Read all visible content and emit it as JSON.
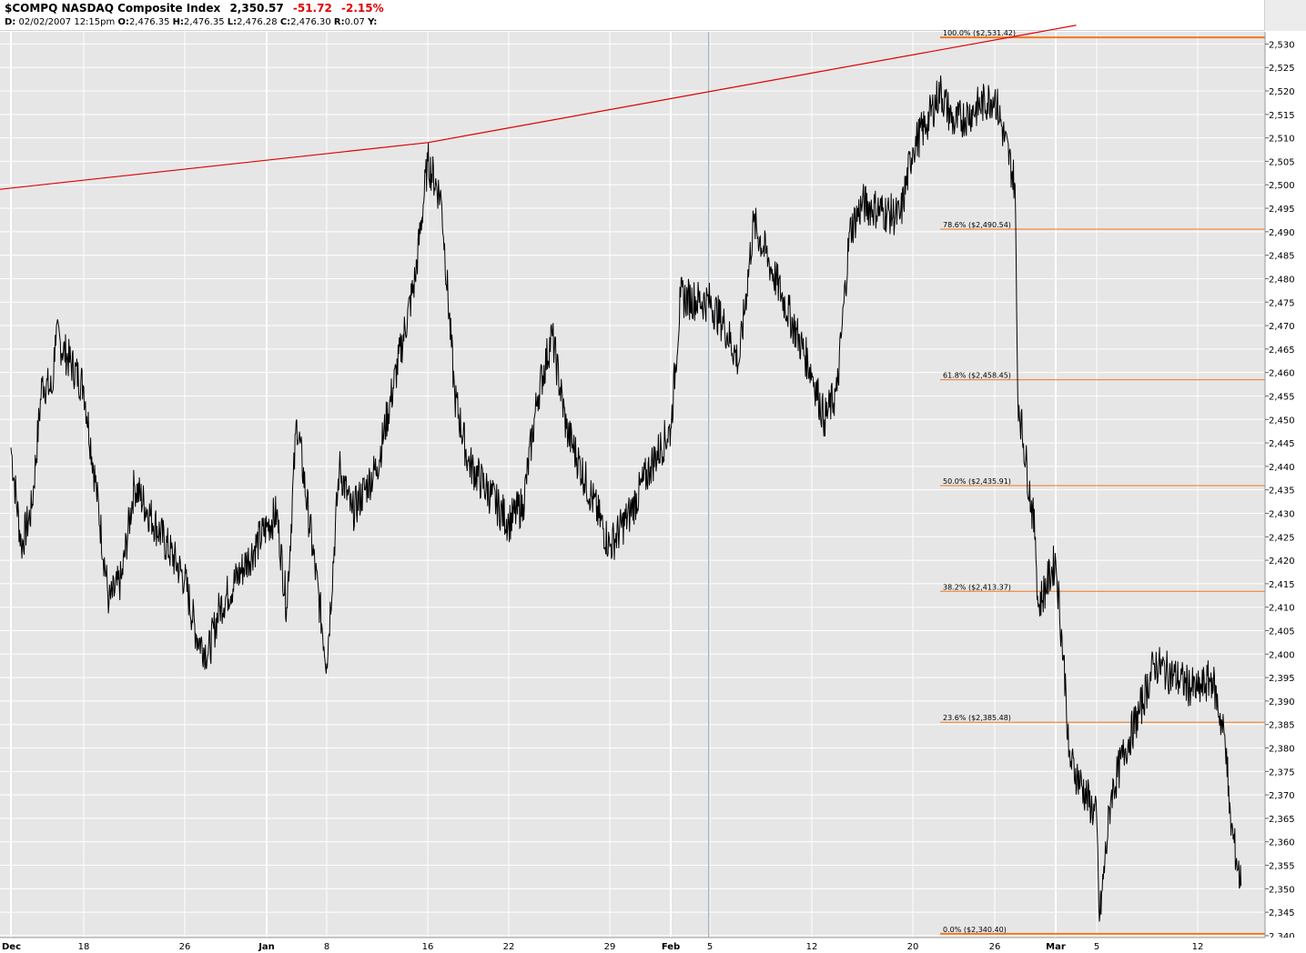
{
  "header": {
    "symbol": "$COMPQ",
    "name": "NASDAQ Composite Index",
    "last": "2,350.57",
    "change": "-51.72",
    "change_pct": "-2.15%",
    "d_label": "D:",
    "date": "02/02/2007",
    "time": "12:15pm",
    "o_label": "O:",
    "open": "2,476.35",
    "h_label": "H:",
    "high": "2,476.35",
    "l_label": "L:",
    "low": "2,476.28",
    "c_label": "C:",
    "close": "2,476.30",
    "r_label": "R:",
    "range": "0.07",
    "y_label": "Y:"
  },
  "colors": {
    "background": "#e6e6e6",
    "grid": "#ffffff",
    "price_line": "#000000",
    "trendline": "#e00000",
    "fib_line": "#f07820",
    "cursor_line": "#8aa0b0",
    "change": "#e00000"
  },
  "chart_data": {
    "type": "line",
    "title": "$COMPQ NASDAQ Composite Index",
    "xlabel": "",
    "ylabel": "",
    "ylim": [
      2340,
      2530
    ],
    "y_ticks": [
      "2,340",
      "2,345",
      "2,350",
      "2,355",
      "2,360",
      "2,365",
      "2,370",
      "2,375",
      "2,380",
      "2,385",
      "2,390",
      "2,395",
      "2,400",
      "2,405",
      "2,410",
      "2,415",
      "2,420",
      "2,425",
      "2,430",
      "2,435",
      "2,440",
      "2,445",
      "2,450",
      "2,455",
      "2,460",
      "2,465",
      "2,470",
      "2,475",
      "2,480",
      "2,485",
      "2,490",
      "2,495",
      "2,500",
      "2,505",
      "2,510",
      "2,515",
      "2,520",
      "2,525",
      "2,530"
    ],
    "x_ticks": [
      {
        "label": "Dec",
        "bold": true,
        "date": "2006-12-11"
      },
      {
        "label": "18",
        "bold": false,
        "date": "2006-12-18"
      },
      {
        "label": "26",
        "bold": false,
        "date": "2006-12-26"
      },
      {
        "label": "Jan",
        "bold": true,
        "date": "2007-01-02"
      },
      {
        "label": "8",
        "bold": false,
        "date": "2007-01-08"
      },
      {
        "label": "16",
        "bold": false,
        "date": "2007-01-16"
      },
      {
        "label": "22",
        "bold": false,
        "date": "2007-01-22"
      },
      {
        "label": "29",
        "bold": false,
        "date": "2007-01-29"
      },
      {
        "label": "Feb",
        "bold": true,
        "date": "2007-02-01"
      },
      {
        "label": "5",
        "bold": false,
        "date": "2007-02-05"
      },
      {
        "label": "12",
        "bold": false,
        "date": "2007-02-12"
      },
      {
        "label": "20",
        "bold": false,
        "date": "2007-02-20"
      },
      {
        "label": "26",
        "bold": false,
        "date": "2007-02-26"
      },
      {
        "label": "Mar",
        "bold": true,
        "date": "2007-03-01"
      },
      {
        "label": "5",
        "bold": false,
        "date": "2007-03-05"
      },
      {
        "label": "12",
        "bold": false,
        "date": "2007-03-12"
      }
    ],
    "series": [
      {
        "values": [
          [
            "2006-12-11",
            2444
          ],
          [
            "2006-12-12",
            2423
          ],
          [
            "2006-12-13",
            2431
          ],
          [
            "2006-12-14",
            2458
          ],
          [
            "2006-12-15",
            2456
          ],
          [
            "2006-12-15",
            2468
          ],
          [
            "2006-12-18",
            2457
          ],
          [
            "2006-12-19",
            2435
          ],
          [
            "2006-12-20",
            2411
          ],
          [
            "2006-12-21",
            2416
          ],
          [
            "2006-12-22",
            2436
          ],
          [
            "2006-12-26",
            2416
          ],
          [
            "2006-12-27",
            2404
          ],
          [
            "2006-12-28",
            2400
          ],
          [
            "2006-12-29",
            2410
          ],
          [
            "2007-01-02",
            2427
          ],
          [
            "2007-01-03",
            2430
          ],
          [
            "2007-01-04",
            2410
          ],
          [
            "2007-01-05",
            2450
          ],
          [
            "2007-01-08",
            2398
          ],
          [
            "2007-01-09",
            2440
          ],
          [
            "2007-01-10",
            2430
          ],
          [
            "2007-01-11",
            2435
          ],
          [
            "2007-01-12",
            2440
          ],
          [
            "2007-01-15",
            2480
          ],
          [
            "2007-01-16",
            2505
          ],
          [
            "2007-01-17",
            2497
          ],
          [
            "2007-01-18",
            2455
          ],
          [
            "2007-01-19",
            2441
          ],
          [
            "2007-01-22",
            2428
          ],
          [
            "2007-01-23",
            2432
          ],
          [
            "2007-01-24",
            2455
          ],
          [
            "2007-01-25",
            2468
          ],
          [
            "2007-01-26",
            2448
          ],
          [
            "2007-01-29",
            2423
          ],
          [
            "2007-01-30",
            2430
          ],
          [
            "2007-01-31",
            2440
          ],
          [
            "2007-02-01",
            2448
          ],
          [
            "2007-02-02",
            2476
          ],
          [
            "2007-02-05",
            2475
          ],
          [
            "2007-02-06",
            2470
          ],
          [
            "2007-02-07",
            2462
          ],
          [
            "2007-02-08",
            2492
          ],
          [
            "2007-02-09",
            2484
          ],
          [
            "2007-02-12",
            2460
          ],
          [
            "2007-02-13",
            2450
          ],
          [
            "2007-02-14",
            2456
          ],
          [
            "2007-02-15",
            2490
          ],
          [
            "2007-02-16",
            2496
          ],
          [
            "2007-02-19",
            2493
          ],
          [
            "2007-02-20",
            2508
          ],
          [
            "2007-02-21",
            2513
          ],
          [
            "2007-02-22",
            2520
          ],
          [
            "2007-02-23",
            2513
          ],
          [
            "2007-02-26",
            2519
          ],
          [
            "2007-02-27",
            2500
          ],
          [
            "2007-02-27",
            2455
          ],
          [
            "2007-02-28",
            2425
          ],
          [
            "2007-02-28",
            2410
          ],
          [
            "2007-03-01",
            2420
          ],
          [
            "2007-03-02",
            2392
          ],
          [
            "2007-03-02",
            2378
          ],
          [
            "2007-03-05",
            2365
          ],
          [
            "2007-03-05",
            2343
          ],
          [
            "2007-03-06",
            2370
          ],
          [
            "2007-03-07",
            2380
          ],
          [
            "2007-03-08",
            2388
          ],
          [
            "2007-03-09",
            2398
          ],
          [
            "2007-03-12",
            2392
          ],
          [
            "2007-03-13",
            2395
          ],
          [
            "2007-03-14",
            2380
          ],
          [
            "2007-03-14",
            2366
          ],
          [
            "2007-03-15",
            2350.57
          ]
        ]
      }
    ],
    "trendline": [
      [
        "2006-12-07",
        2495
      ],
      [
        "2007-01-16",
        2509
      ],
      [
        "2007-03-03",
        2534
      ]
    ],
    "fibonacci": {
      "start_date": "2007-02-22",
      "levels": [
        {
          "label": "100.0%",
          "value": 2531.42,
          "text": "($2,531.42)"
        },
        {
          "label": "78.6%",
          "value": 2490.54,
          "text": "($2,490.54)"
        },
        {
          "label": "61.8%",
          "value": 2458.45,
          "text": "($2,458.45)"
        },
        {
          "label": "50.0%",
          "value": 2435.91,
          "text": "($2,435.91)"
        },
        {
          "label": "38.2%",
          "value": 2413.37,
          "text": "($2,413.37)"
        },
        {
          "label": "23.6%",
          "value": 2385.48,
          "text": "($2,385.48)"
        },
        {
          "label": "0.0%",
          "value": 2340.4,
          "text": "($2,340.40)"
        }
      ]
    },
    "cursor_date": "2007-02-02",
    "grid": true,
    "legend": "none"
  }
}
